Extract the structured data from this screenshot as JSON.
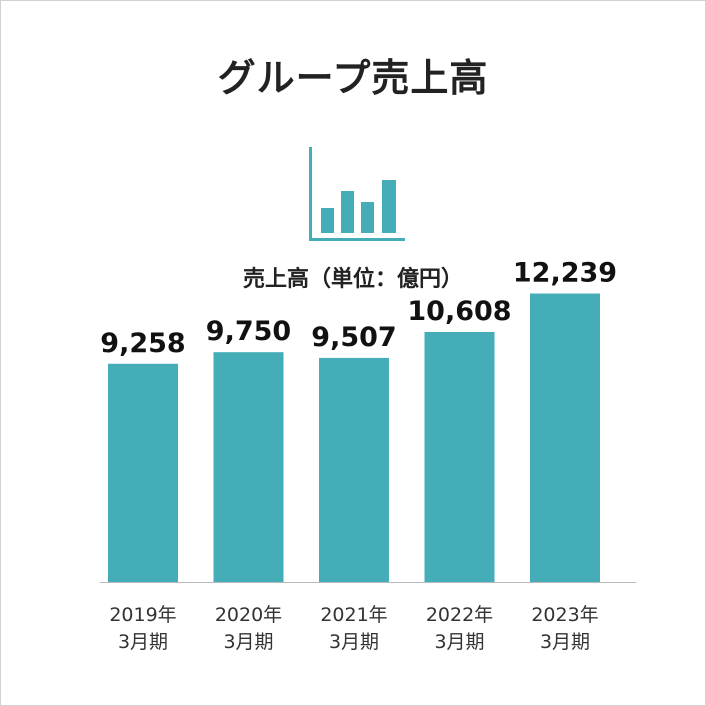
{
  "title": "グループ売上高",
  "icon": "bar-chart-icon",
  "chart_data": {
    "type": "bar",
    "title": "",
    "ylabel": "売上高（単位：億円）",
    "xlabel": "",
    "categories": [
      [
        "2019年",
        "3月期"
      ],
      [
        "2020年",
        "3月期"
      ],
      [
        "2021年",
        "3月期"
      ],
      [
        "2022年",
        "3月期"
      ],
      [
        "2023年",
        "3月期"
      ]
    ],
    "values": [
      9258,
      9750,
      9507,
      10608,
      12239
    ],
    "value_labels": [
      "9,258",
      "9,750",
      "9,507",
      "10,608",
      "12,239"
    ],
    "ylim": [
      0,
      14000
    ],
    "grid": false,
    "legend": "none",
    "bar_color": "#44adb8",
    "axis_color": "#b8b8b8"
  }
}
